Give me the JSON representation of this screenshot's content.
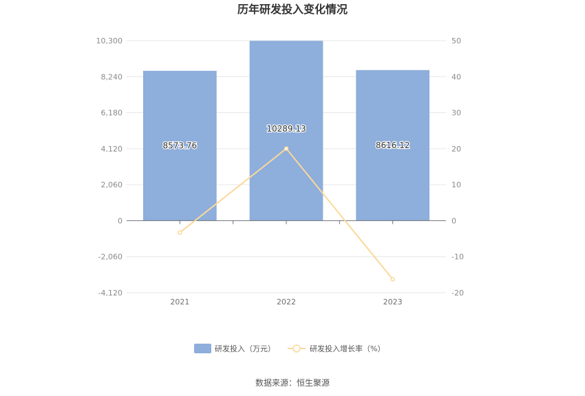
{
  "chart_data": {
    "type": "bar",
    "title": "历年研发投入变化情况",
    "categories": [
      "2021",
      "2022",
      "2023"
    ],
    "series": [
      {
        "name": "研发投入（万元）",
        "type": "bar",
        "axis": "left",
        "values": [
          8573.76,
          10289.13,
          8616.12
        ],
        "labels": [
          "8573.76",
          "10289.13",
          "8616.12"
        ],
        "color": "#8eaedb"
      },
      {
        "name": "研发投入增长率（%）",
        "type": "line",
        "axis": "right",
        "values": [
          -3.3,
          20.01,
          -16.26
        ],
        "color": "#fbd89a"
      }
    ],
    "y_left": {
      "min": -4120,
      "max": 10300,
      "ticks": [
        10300,
        8240,
        6180,
        4120,
        2060,
        0,
        -2060,
        -4120
      ],
      "tick_labels": [
        "10,300",
        "8,240",
        "6,180",
        "4,120",
        "2,060",
        "0",
        "-2,060",
        "-4,120"
      ]
    },
    "y_right": {
      "min": -20,
      "max": 50,
      "ticks": [
        50,
        40,
        30,
        20,
        10,
        0,
        -10,
        -20
      ],
      "tick_labels": [
        "50",
        "40",
        "30",
        "20",
        "10",
        "0",
        "-10",
        "-20"
      ]
    },
    "grid": true,
    "legend_position": "bottom-center",
    "source": "数据来源：恒生聚源"
  }
}
